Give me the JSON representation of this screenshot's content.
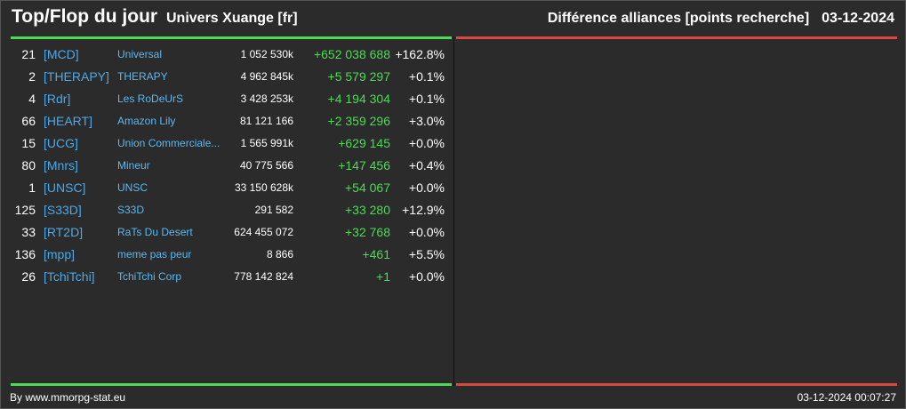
{
  "header": {
    "title": "Top/Flop du jour",
    "universe": "Univers Xuange [fr]",
    "ranking_type": "Différence alliances [points recherche]",
    "date": "03-12-2024"
  },
  "colors": {
    "top_bar": "#4ddb55",
    "flop_bar": "#d9473f",
    "tag": "#4fa8e6",
    "name": "#5bb8f0",
    "diff_positive": "#4ddb55"
  },
  "rows": [
    {
      "rank": "21",
      "tag": "[MCD]",
      "name": "Universal",
      "points": "1 052 530k",
      "diff": "+652 038 688",
      "pct": "+162.8%"
    },
    {
      "rank": "2",
      "tag": "[THERAPY]",
      "name": "THERAPY",
      "points": "4 962 845k",
      "diff": "+5 579 297",
      "pct": "+0.1%"
    },
    {
      "rank": "4",
      "tag": "[Rdr]",
      "name": "Les RoDeUrS",
      "points": "3 428 253k",
      "diff": "+4 194 304",
      "pct": "+0.1%"
    },
    {
      "rank": "66",
      "tag": "[HEART]",
      "name": "Amazon Lily",
      "points": "81 121 166",
      "diff": "+2 359 296",
      "pct": "+3.0%"
    },
    {
      "rank": "15",
      "tag": "[UCG]",
      "name": "Union Commerciale...",
      "points": "1 565 991k",
      "diff": "+629 145",
      "pct": "+0.0%"
    },
    {
      "rank": "80",
      "tag": "[Mnrs]",
      "name": "Mineur",
      "points": "40 775 566",
      "diff": "+147 456",
      "pct": "+0.4%"
    },
    {
      "rank": "1",
      "tag": "[UNSC]",
      "name": "UNSC",
      "points": "33 150 628k",
      "diff": "+54 067",
      "pct": "+0.0%"
    },
    {
      "rank": "125",
      "tag": "[S33D]",
      "name": "S33D",
      "points": "291 582",
      "diff": "+33 280",
      "pct": "+12.9%"
    },
    {
      "rank": "33",
      "tag": "[RT2D]",
      "name": "RaTs Du Desert",
      "points": "624 455 072",
      "diff": "+32 768",
      "pct": "+0.0%"
    },
    {
      "rank": "136",
      "tag": "[mpp]",
      "name": "meme pas peur",
      "points": "8 866",
      "diff": "+461",
      "pct": "+5.5%"
    },
    {
      "rank": "26",
      "tag": "[TchiTchi]",
      "name": "TchiTchi Corp",
      "points": "778 142 824",
      "diff": "+1",
      "pct": "+0.0%"
    }
  ],
  "footer": {
    "credit": "By www.mmorpg-stat.eu",
    "timestamp": "03-12-2024 00:07:27"
  }
}
